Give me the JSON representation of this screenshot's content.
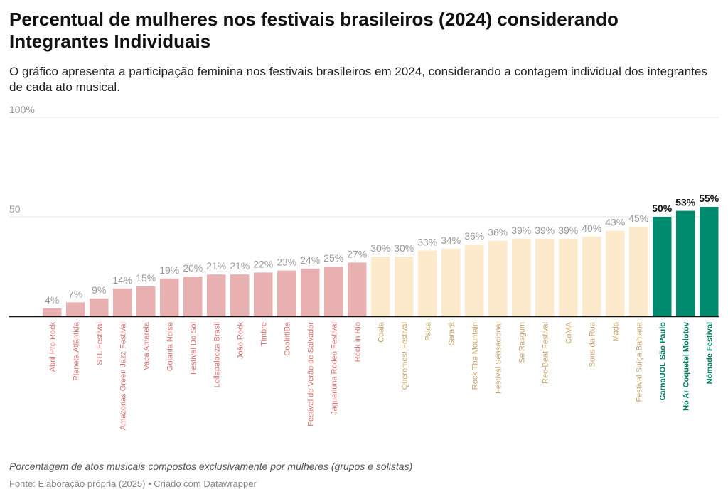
{
  "header": {
    "title": "Percentual de mulheres nos festivais brasileiros (2024) considerando Integrantes Individuais",
    "subtitle": "O gráfico apresenta a participação feminina nos festivais brasileiros em 2024, considerando a contagem individual dos integrantes de cada ato musical."
  },
  "footer": {
    "note": "Porcentagem de atos musicais compostos exclusivamente por mulheres (grupos e solistas)",
    "source": "Fonte: Elaboração própria (2025) • Criado com Datawrapper"
  },
  "colors": {
    "low": "#e8b0b0",
    "low_text": "#d9706c",
    "mid": "#fde9cb",
    "mid_text": "#c9a46a",
    "high": "#008b6e",
    "high_text": "#00805f",
    "value_label": "#999999",
    "value_label_high": "#111111",
    "gridline": "#e5e5e5",
    "axis": "#111111"
  },
  "chart_data": {
    "type": "bar",
    "title": "Percentual de mulheres nos festivais brasileiros (2024) considerando Integrantes Individuais",
    "xlabel": "",
    "ylabel": "",
    "ylim": [
      0,
      100
    ],
    "yticks": [
      {
        "value": 100,
        "label": "100%"
      },
      {
        "value": 50,
        "label": "50"
      }
    ],
    "categories": [
      "Abril Pro Rock",
      "Planeta Atlântida",
      "STL Festival",
      "Amazonas Green Jazz Festival",
      "Vaca Amarela",
      "Goiania Noise",
      "Festival Do Sol",
      "Lollapalooza Brasil",
      "João Rock",
      "Timbre",
      "CoolritiBa",
      "Festival de Verão de Salvador",
      "Jaguariúna Rodeo Festival",
      "Rock in Rio",
      "Coala",
      "Queremos! Festival",
      "Psica",
      "Sarará",
      "Rock The Mountain",
      "Festival Sensacional",
      "Se Rasgum",
      "Rec-Beat Festival",
      "CoMA",
      "Sons da Rua",
      "Mada",
      "Festival Suíça Bahiana",
      "CarnaUOL São Paulo",
      "No Ar Coquetel Molotov",
      "Nômade Festival"
    ],
    "values": [
      4,
      7,
      9,
      14,
      15,
      19,
      20,
      21,
      21,
      22,
      23,
      24,
      25,
      27,
      30,
      30,
      33,
      34,
      36,
      38,
      39,
      39,
      39,
      40,
      43,
      45,
      50,
      53,
      55
    ],
    "value_labels": [
      "4%",
      "7%",
      "9%",
      "14%",
      "15%",
      "19%",
      "20%",
      "21%",
      "21%",
      "22%",
      "23%",
      "24%",
      "25%",
      "27%",
      "30%",
      "30%",
      "33%",
      "34%",
      "36%",
      "38%",
      "39%",
      "39%",
      "39%",
      "40%",
      "43%",
      "45%",
      "50%",
      "53%",
      "55%"
    ],
    "groups": [
      "low",
      "low",
      "low",
      "low",
      "low",
      "low",
      "low",
      "low",
      "low",
      "low",
      "low",
      "low",
      "low",
      "low",
      "mid",
      "mid",
      "mid",
      "mid",
      "mid",
      "mid",
      "mid",
      "mid",
      "mid",
      "mid",
      "mid",
      "mid",
      "high",
      "high",
      "high"
    ]
  }
}
